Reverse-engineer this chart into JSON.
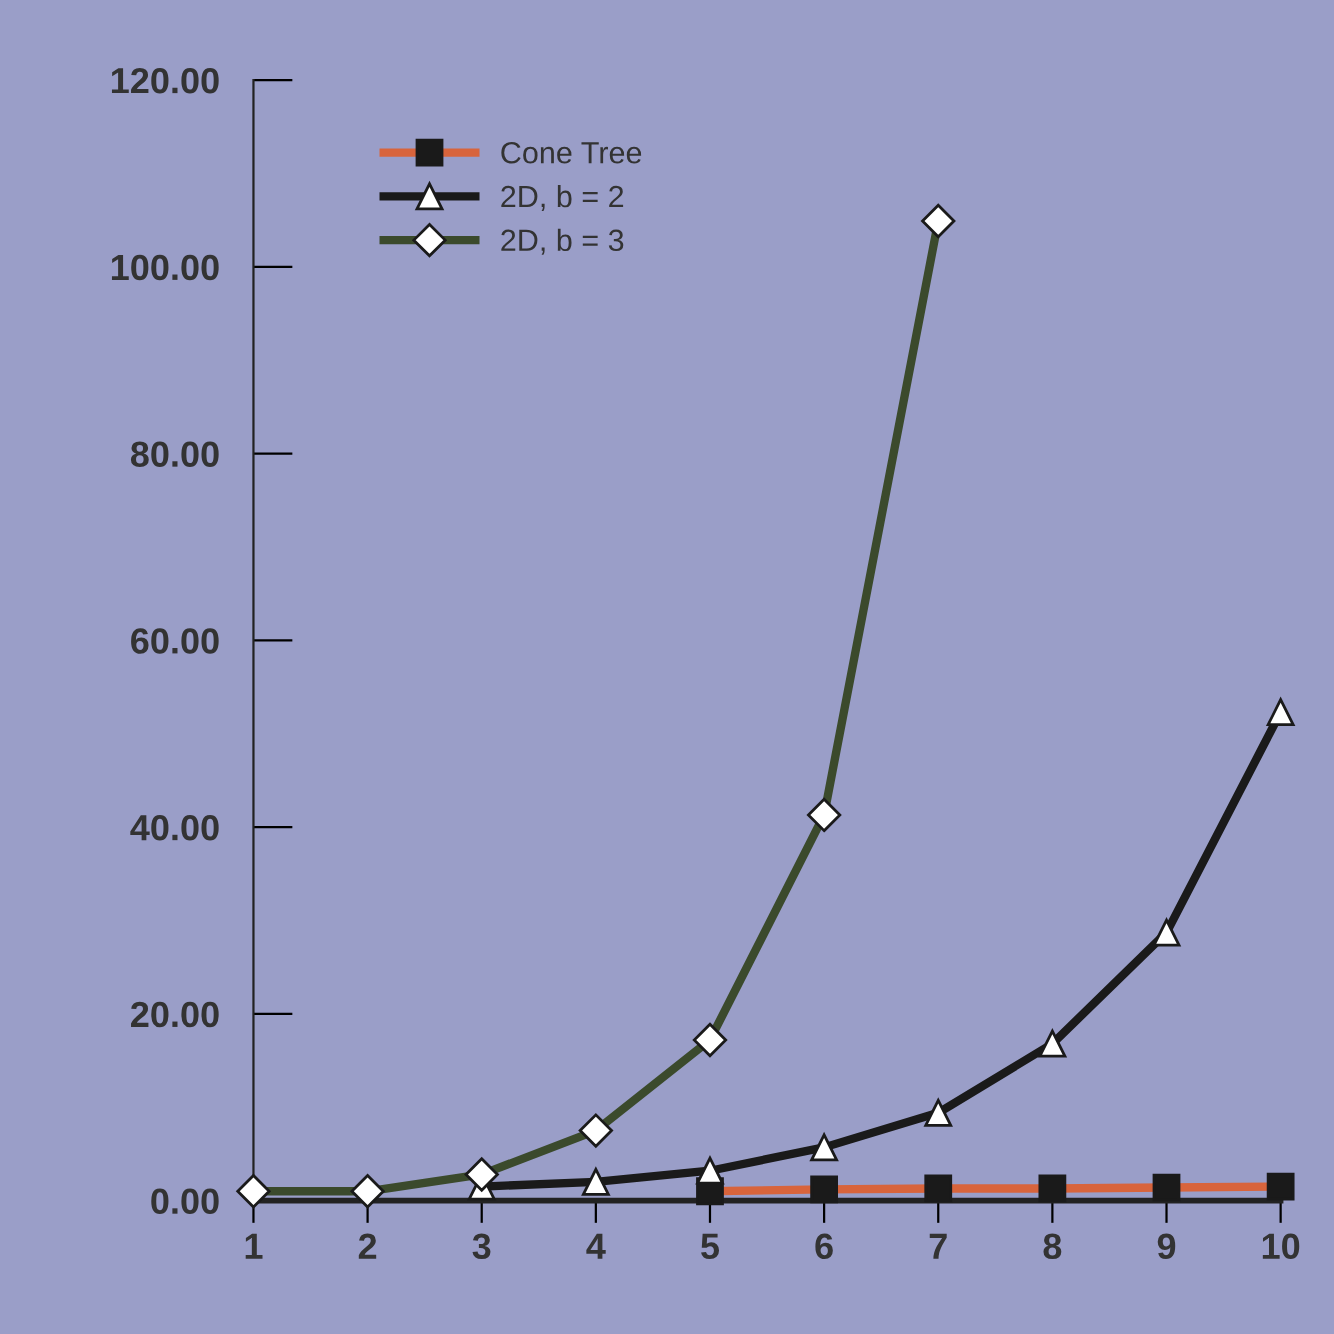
{
  "chart_data": {
    "type": "line",
    "x": [
      1,
      2,
      3,
      4,
      5,
      6,
      7,
      8,
      9,
      10
    ],
    "series": [
      {
        "name": "Cone Tree",
        "color": "#d8643c",
        "marker": "square",
        "values": [
          null,
          null,
          null,
          null,
          1,
          1.2,
          1.3,
          1.3,
          1.4,
          1.5
        ]
      },
      {
        "name": "2D, b = 2",
        "color": "#1a1a1a",
        "marker": "triangle",
        "values": [
          null,
          null,
          1.5,
          2,
          3.2,
          5.7,
          9.4,
          16.8,
          28.7,
          52.3
        ]
      },
      {
        "name": "2D, b = 3",
        "color": "#3b4a2c",
        "marker": "diamond",
        "values": [
          1,
          1,
          2.8,
          7.5,
          17.2,
          41.3,
          104.9,
          null,
          null,
          null
        ]
      }
    ],
    "xlim": [
      1,
      10
    ],
    "xticks": [
      1,
      2,
      3,
      4,
      5,
      6,
      7,
      8,
      9,
      10
    ],
    "ylim": [
      0,
      120
    ],
    "yticks": [
      {
        "value": 0,
        "label": "0.00"
      },
      {
        "value": 20,
        "label": "20.00"
      },
      {
        "value": 40,
        "label": "40.00"
      },
      {
        "value": 60,
        "label": "60.00"
      },
      {
        "value": 80,
        "label": "80.00"
      },
      {
        "value": 100,
        "label": "100.00"
      },
      {
        "value": 120,
        "label": "120.00"
      }
    ],
    "grid": false,
    "legend": "top left"
  }
}
